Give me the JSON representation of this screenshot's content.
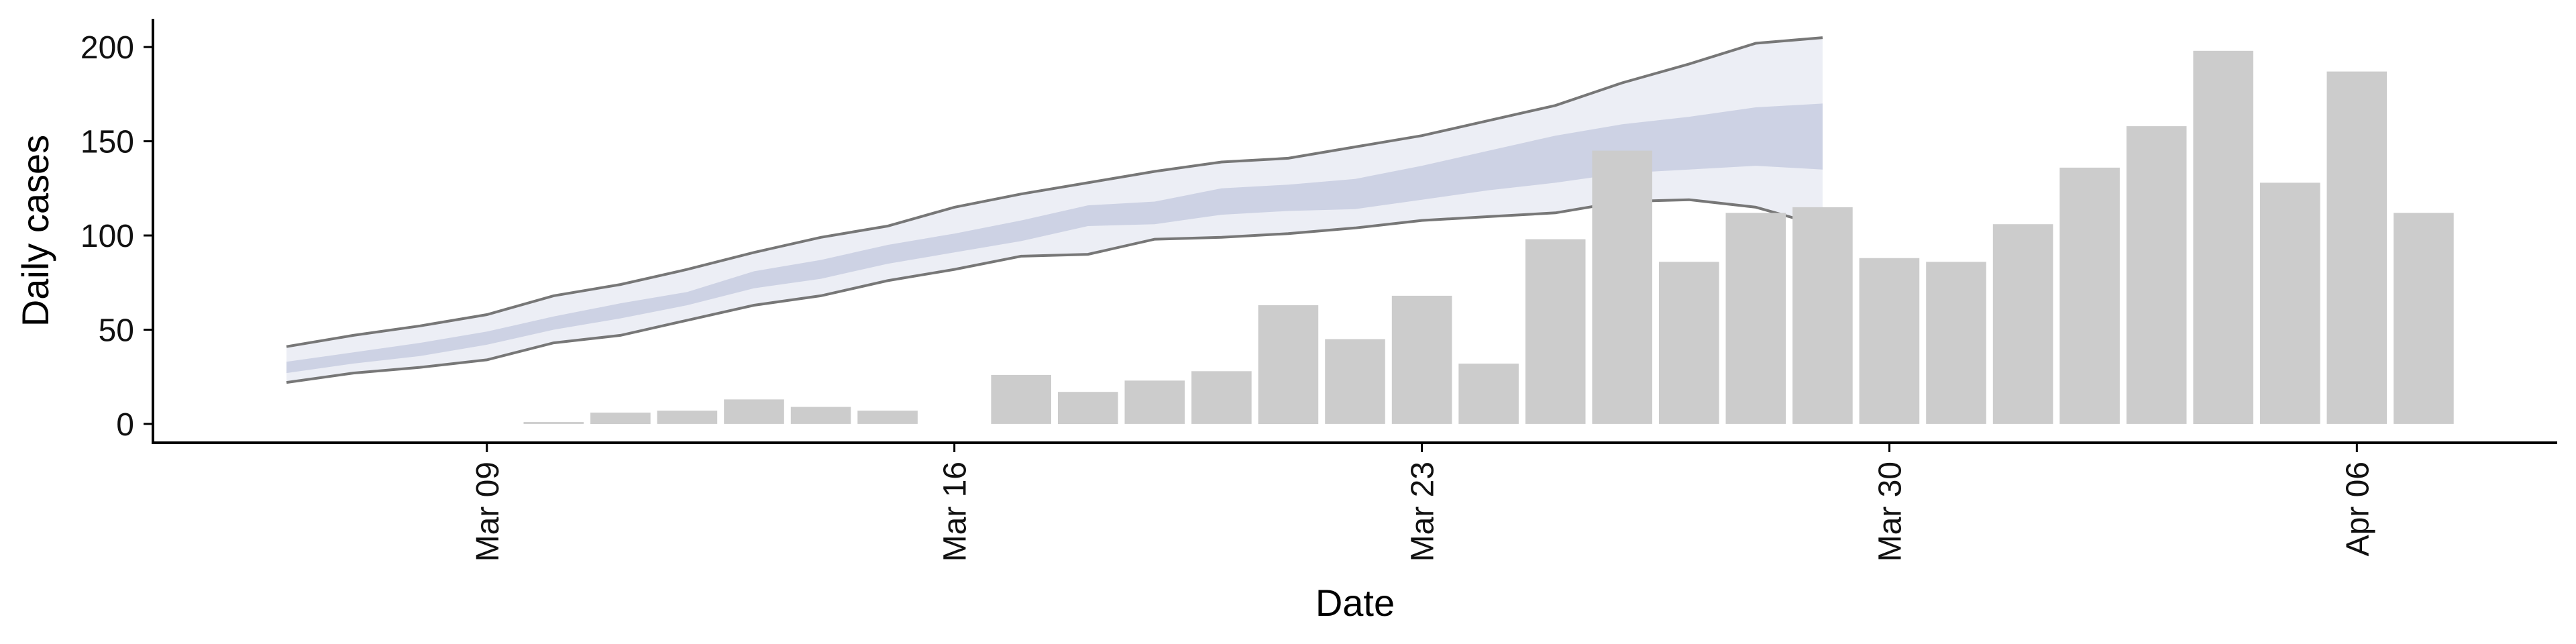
{
  "chart_data": {
    "type": "bar",
    "xlabel": "Date",
    "ylabel": "Daily cases",
    "ylim": [
      -10,
      215
    ],
    "yticks": [
      0,
      50,
      100,
      150,
      200
    ],
    "x_range": [
      "2020-03-04",
      "2020-04-09"
    ],
    "xticks": [
      {
        "date": "2020-03-09",
        "label": "Mar 09"
      },
      {
        "date": "2020-03-16",
        "label": "Mar 16"
      },
      {
        "date": "2020-03-23",
        "label": "Mar 23"
      },
      {
        "date": "2020-03-30",
        "label": "Mar 30"
      },
      {
        "date": "2020-04-06",
        "label": "Apr 06"
      }
    ],
    "bars": {
      "dates": [
        "2020-03-10",
        "2020-03-11",
        "2020-03-12",
        "2020-03-13",
        "2020-03-14",
        "2020-03-15",
        "2020-03-16",
        "2020-03-17",
        "2020-03-18",
        "2020-03-19",
        "2020-03-20",
        "2020-03-21",
        "2020-03-22",
        "2020-03-23",
        "2020-03-24",
        "2020-03-25",
        "2020-03-26",
        "2020-03-27",
        "2020-03-28",
        "2020-03-29",
        "2020-03-30",
        "2020-03-31",
        "2020-04-01",
        "2020-04-02",
        "2020-04-03",
        "2020-04-04",
        "2020-04-05",
        "2020-04-06",
        "2020-04-07"
      ],
      "values": [
        1,
        6,
        7,
        13,
        9,
        7,
        0,
        26,
        17,
        23,
        28,
        63,
        45,
        68,
        32,
        98,
        145,
        86,
        112,
        115,
        88,
        86,
        106,
        136,
        158,
        198,
        128,
        187,
        112
      ],
      "color": "#cccccc"
    },
    "forecast": {
      "dates": [
        "2020-03-06",
        "2020-03-07",
        "2020-03-08",
        "2020-03-09",
        "2020-03-10",
        "2020-03-11",
        "2020-03-12",
        "2020-03-13",
        "2020-03-14",
        "2020-03-15",
        "2020-03-16",
        "2020-03-17",
        "2020-03-18",
        "2020-03-19",
        "2020-03-20",
        "2020-03-21",
        "2020-03-22",
        "2020-03-23",
        "2020-03-24",
        "2020-03-25",
        "2020-03-26",
        "2020-03-27",
        "2020-03-28",
        "2020-03-29"
      ],
      "lower_90": [
        22,
        27,
        30,
        34,
        43,
        47,
        55,
        63,
        68,
        76,
        82,
        89,
        90,
        98,
        99,
        101,
        104,
        108,
        110,
        112,
        118,
        119,
        115,
        105
      ],
      "lower_50": [
        27,
        32,
        36,
        42,
        50,
        56,
        63,
        72,
        77,
        85,
        91,
        97,
        105,
        106,
        111,
        113,
        114,
        119,
        124,
        128,
        133,
        135,
        137,
        135
      ],
      "upper_50": [
        33,
        38,
        43,
        49,
        57,
        64,
        70,
        81,
        87,
        95,
        101,
        108,
        116,
        118,
        125,
        127,
        130,
        137,
        145,
        153,
        159,
        163,
        168,
        170
      ],
      "upper_90": [
        41,
        47,
        52,
        58,
        68,
        74,
        82,
        91,
        99,
        105,
        115,
        122,
        128,
        134,
        139,
        141,
        147,
        153,
        161,
        169,
        181,
        191,
        202,
        205
      ],
      "band_color": "#d4d9e8",
      "core_color": "#b9c0d8",
      "line_color": "#777777"
    }
  }
}
